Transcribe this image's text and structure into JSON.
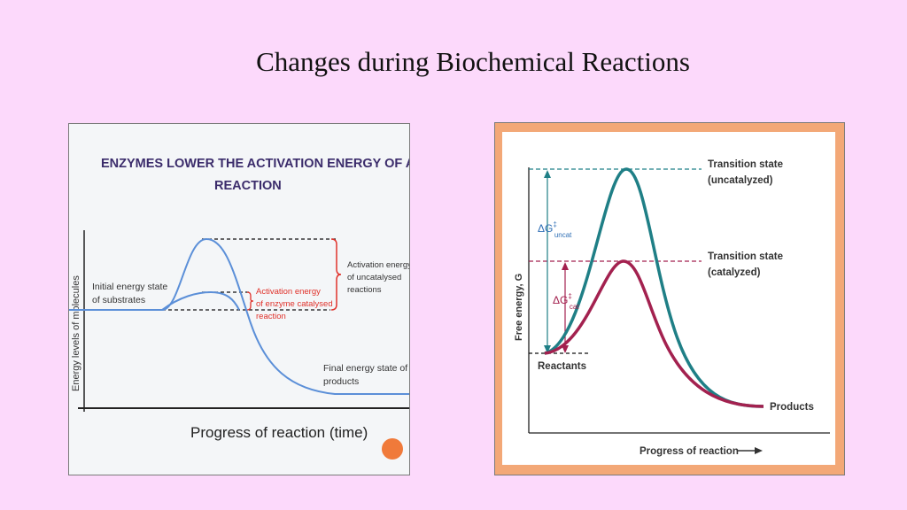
{
  "slide": {
    "title": "Changes during Biochemical Reactions"
  },
  "left_diagram": {
    "title_line1": "ENZYMES LOWER THE ACTIVATION ENERGY OF A",
    "title_line2": "REACTION",
    "y_axis_label": "Energy levels of molecules",
    "x_axis_label": "Progress of reaction (time)",
    "initial_state_line1": "Initial energy state",
    "initial_state_line2": "of substrates",
    "uncatalysed_line1": "Activation energy",
    "uncatalysed_line2": "of uncatalysed",
    "uncatalysed_line3": "reactions",
    "catalysed_line1": "Activation energy",
    "catalysed_line2": "of enzyme catalysed",
    "catalysed_line3": "reaction",
    "final_state_line1": "Final energy state of",
    "final_state_line2": "products",
    "colors": {
      "curve": "#5b8fd8",
      "catalysed_label": "#e0322b",
      "uncatalysed_brace": "#e0322b",
      "orange_dot": "#f07a3a"
    }
  },
  "right_diagram": {
    "y_axis_label": "Free energy, G",
    "x_axis_label": "Progress of reaction",
    "ts_uncat_line1": "Transition state",
    "ts_uncat_line2": "(uncatalyzed)",
    "ts_cat_line1": "Transition state",
    "ts_cat_line2": "(catalyzed)",
    "delta_g_uncat": "ΔG",
    "delta_g_uncat_sub": "uncat",
    "delta_g_cat": "ΔG",
    "delta_g_cat_sub": "cat",
    "reactants": "Reactants",
    "products": "Products",
    "colors": {
      "uncatalyzed": "#1f7f86",
      "catalyzed": "#a3214f",
      "label_blue": "#2f6fb5"
    }
  }
}
